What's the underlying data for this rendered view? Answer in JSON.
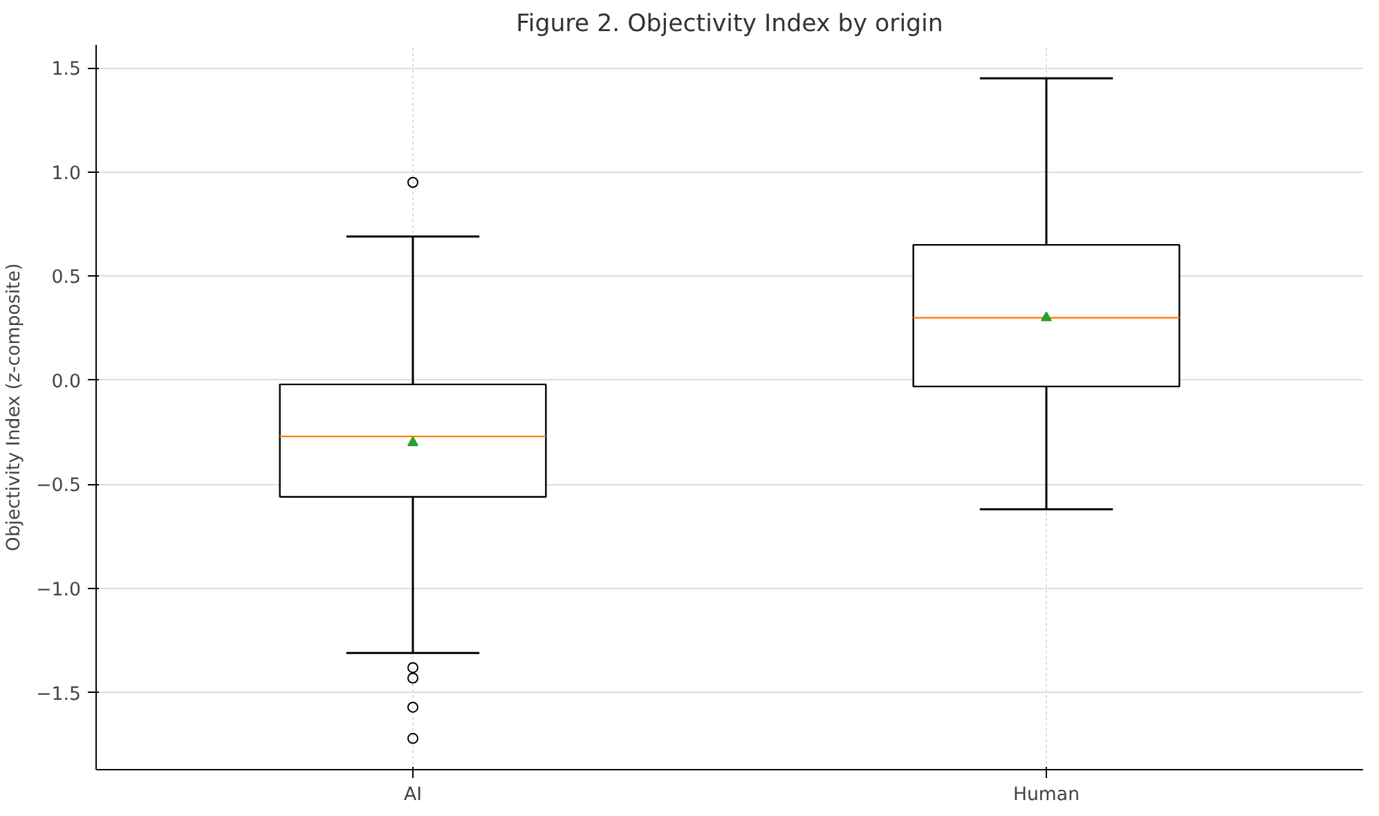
{
  "chart_data": {
    "type": "box",
    "title": "Figure 2. Objectivity Index by origin",
    "ylabel": "Objectivity Index (z-composite)",
    "categories": [
      "AI",
      "Human"
    ],
    "boxes": [
      {
        "low": -1.31,
        "q1": -0.56,
        "median": -0.27,
        "q3": -0.02,
        "high": 0.69,
        "mean": -0.3,
        "outliers": [
          0.95,
          -1.38,
          -1.43,
          -1.57,
          -1.72
        ]
      },
      {
        "low": -0.62,
        "q1": -0.03,
        "median": 0.3,
        "q3": 0.65,
        "high": 1.45,
        "mean": 0.3
      }
    ],
    "ylim": [
      -1.87,
      1.61
    ],
    "yticks": [
      {
        "value": -1.5,
        "label": "−1.5"
      },
      {
        "value": -1,
        "label": "−1.0"
      },
      {
        "value": -0.5,
        "label": "−0.5"
      },
      {
        "value": 0,
        "label": "0.0"
      },
      {
        "value": 0.5,
        "label": "0.5"
      },
      {
        "value": 1,
        "label": "1.0"
      },
      {
        "value": 1.5,
        "label": "1.5"
      }
    ],
    "grid": true,
    "marker": "triangle"
  }
}
